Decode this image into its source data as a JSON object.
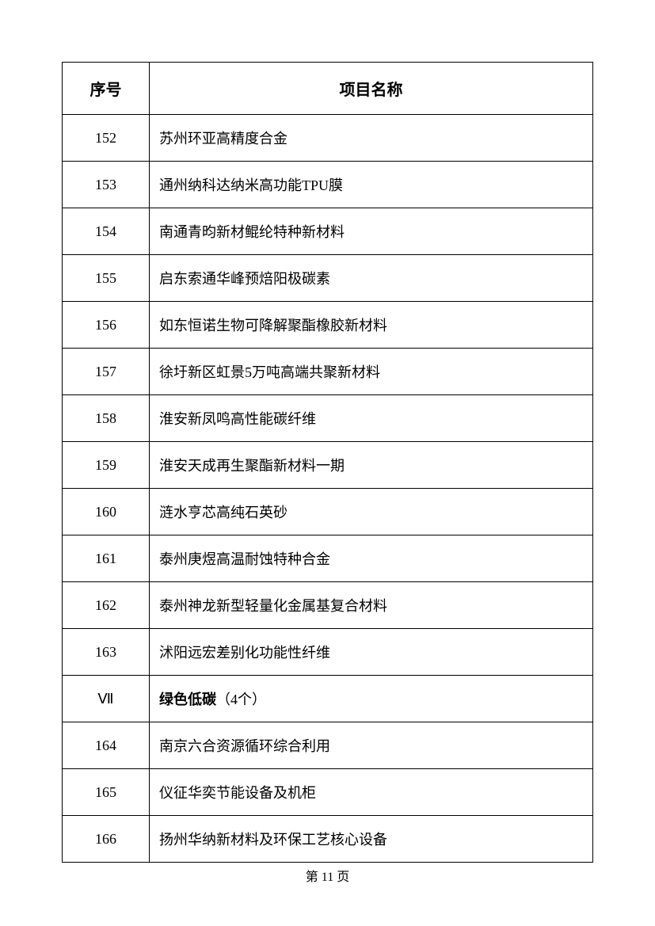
{
  "table": {
    "headers": {
      "num": "序号",
      "name": "项目名称"
    },
    "rows": [
      {
        "num": "152",
        "name": "苏州环亚高精度合金",
        "section": false
      },
      {
        "num": "153",
        "name": "通州纳科达纳米高功能TPU膜",
        "section": false
      },
      {
        "num": "154",
        "name": "南通青昀新材鲲纶特种新材料",
        "section": false
      },
      {
        "num": "155",
        "name": "启东索通华峰预焙阳极碳素",
        "section": false
      },
      {
        "num": "156",
        "name": "如东恒诺生物可降解聚酯橡胶新材料",
        "section": false
      },
      {
        "num": "157",
        "name": "徐圩新区虹景5万吨高端共聚新材料",
        "section": false
      },
      {
        "num": "158",
        "name": "淮安新凤鸣高性能碳纤维",
        "section": false
      },
      {
        "num": "159",
        "name": "淮安天成再生聚酯新材料一期",
        "section": false
      },
      {
        "num": "160",
        "name": "涟水亨芯高纯石英砂",
        "section": false
      },
      {
        "num": "161",
        "name": "泰州庚煜高温耐蚀特种合金",
        "section": false
      },
      {
        "num": "162",
        "name": "泰州神龙新型轻量化金属基复合材料",
        "section": false
      },
      {
        "num": "163",
        "name": "沭阳远宏差别化功能性纤维",
        "section": false
      },
      {
        "num": "Ⅶ",
        "bold": "绿色低碳",
        "rest": "（4个）",
        "section": true
      },
      {
        "num": "164",
        "name": "南京六合资源循环综合利用",
        "section": false
      },
      {
        "num": "165",
        "name": "仪征华奕节能设备及机柜",
        "section": false
      },
      {
        "num": "166",
        "name": "扬州华纳新材料及环保工艺核心设备",
        "section": false
      }
    ]
  },
  "footer": {
    "text": "第 11 页"
  }
}
